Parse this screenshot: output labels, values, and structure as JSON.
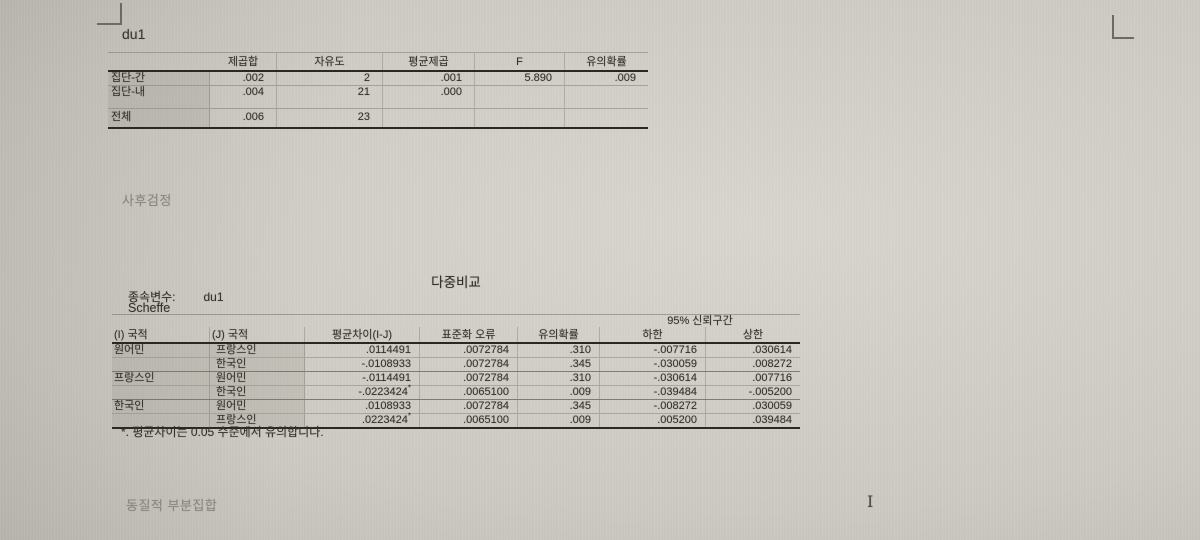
{
  "anova": {
    "title": "du1",
    "columns": [
      "제곱합",
      "자유도",
      "평균제곱",
      "F",
      "유의확률"
    ],
    "rows": [
      {
        "label": "집단-간",
        "ss": ".002",
        "df": "2",
        "ms": ".001",
        "f": "5.890",
        "sig": ".009"
      },
      {
        "label": "집단-내",
        "ss": ".004",
        "df": "21",
        "ms": ".000",
        "f": "",
        "sig": ""
      },
      {
        "label": "전체",
        "ss": ".006",
        "df": "23",
        "ms": "",
        "f": "",
        "sig": ""
      }
    ]
  },
  "sections": {
    "posthoc": "사후검정",
    "homogeneous": "동질적 부분집합"
  },
  "multi": {
    "title": "다중비교",
    "dependent_label": "종속변수:",
    "dependent_value": "du1",
    "method": "Scheffe",
    "ci_span": "95% 신뢰구간",
    "col_i": "(I) 국적",
    "col_j": "(J) 국적",
    "col_diff": "평균차이(I-J)",
    "col_se": "표준화 오류",
    "col_sig": "유의확률",
    "col_lower": "하한",
    "col_upper": "상한",
    "rows": [
      {
        "i": "원어민",
        "j": "프랑스인",
        "diff": ".0114491",
        "star": "",
        "se": ".0072784",
        "sig": ".310",
        "lower": "-.007716",
        "upper": ".030614"
      },
      {
        "i": "",
        "j": "한국인",
        "diff": "-.0108933",
        "star": "",
        "se": ".0072784",
        "sig": ".345",
        "lower": "-.030059",
        "upper": ".008272"
      },
      {
        "i": "프랑스인",
        "j": "원어민",
        "diff": "-.0114491",
        "star": "",
        "se": ".0072784",
        "sig": ".310",
        "lower": "-.030614",
        "upper": ".007716"
      },
      {
        "i": "",
        "j": "한국인",
        "diff": "-.0223424",
        "star": "*",
        "se": ".0065100",
        "sig": ".009",
        "lower": "-.039484",
        "upper": "-.005200"
      },
      {
        "i": "한국인",
        "j": "원어민",
        "diff": ".0108933",
        "star": "",
        "se": ".0072784",
        "sig": ".345",
        "lower": "-.008272",
        "upper": ".030059"
      },
      {
        "i": "",
        "j": "프랑스인",
        "diff": ".0223424",
        "star": "*",
        "se": ".0065100",
        "sig": ".009",
        "lower": ".005200",
        "upper": ".039484"
      }
    ],
    "footnote": "*. 평균차이는 0.05 수준에서 유의합니다."
  },
  "icons": {
    "text_cursor": "I"
  },
  "colors": {
    "page_background": "#ccc9c2",
    "text": "#34312b",
    "heading_gray": "#8b877f",
    "table_line_dark": "#2b2822"
  }
}
